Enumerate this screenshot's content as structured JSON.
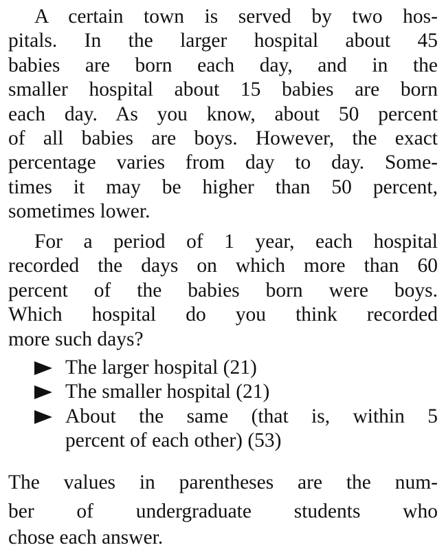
{
  "paragraph1": {
    "lines": [
      "A certain town is served by two hos-",
      "pitals. In the larger hospital about 45",
      "babies are born each day, and in the",
      "smaller hospital about 15 babies are born",
      "each day. As you know, about 50 percent",
      "of all babies are boys. However, the exact",
      "percentage varies from day to day. Some-",
      "times it may be higher than 50 percent,",
      "sometimes lower."
    ]
  },
  "paragraph2": {
    "lines": [
      "For a period of 1 year, each hospital",
      "recorded the days on which more than 60",
      "percent of the babies born were boys.",
      "Which hospital do you think recorded",
      "more such days?"
    ]
  },
  "options": [
    {
      "lines": [
        "The larger hospital (21)"
      ]
    },
    {
      "lines": [
        "The smaller hospital (21)"
      ]
    },
    {
      "lines": [
        "About the same (that is, within 5",
        "percent of each other) (53)"
      ]
    }
  ],
  "note": {
    "lines": [
      "The values in parentheses are the num-",
      "ber of undergraduate students who",
      "chose each answer."
    ]
  }
}
